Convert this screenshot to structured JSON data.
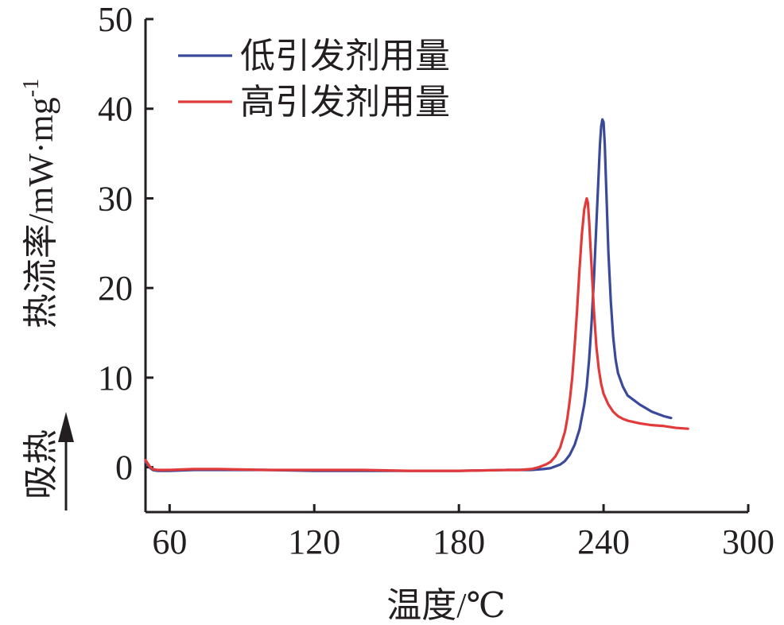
{
  "chart_data": {
    "type": "line",
    "title": "",
    "xlabel": "温度/℃",
    "ylabel": "热流率/mW·mg",
    "ylabel_superscript": "-1",
    "endo_label": "吸热",
    "endo_direction": "up",
    "xlim": [
      50,
      300
    ],
    "ylim": [
      -5,
      50
    ],
    "x_ticks": [
      60,
      120,
      180,
      240,
      300
    ],
    "y_ticks": [
      0,
      10,
      20,
      30,
      40,
      50
    ],
    "grid": false,
    "legend_position": "top-left",
    "series": [
      {
        "name": "低引发剂用量",
        "color": "#3a4a9a",
        "x": [
          50,
          51,
          52,
          53,
          55,
          58,
          60,
          70,
          80,
          100,
          120,
          140,
          160,
          180,
          200,
          210,
          215,
          218,
          220,
          222,
          224,
          226,
          228,
          230,
          232,
          233,
          234,
          235,
          236,
          237,
          238,
          238.5,
          239,
          239.5,
          240,
          240.5,
          241,
          242,
          243,
          244,
          245,
          246,
          248,
          250,
          255,
          260,
          265,
          268
        ],
        "y": [
          0.6,
          0.3,
          -0.1,
          -0.3,
          -0.4,
          -0.4,
          -0.4,
          -0.3,
          -0.3,
          -0.3,
          -0.4,
          -0.4,
          -0.4,
          -0.4,
          -0.3,
          -0.3,
          -0.2,
          -0.1,
          0.1,
          0.3,
          0.7,
          1.4,
          2.5,
          4.2,
          7.0,
          9.0,
          12.0,
          16.0,
          21.0,
          27.0,
          33.0,
          36.0,
          38.0,
          38.8,
          38.5,
          36.0,
          32.0,
          24.0,
          18.5,
          14.5,
          12.0,
          10.5,
          9.0,
          8.0,
          7.0,
          6.2,
          5.7,
          5.5
        ]
      },
      {
        "name": "高引发剂用量",
        "color": "#e23a3a",
        "x": [
          50,
          51,
          52,
          53,
          55,
          58,
          60,
          70,
          80,
          100,
          120,
          140,
          160,
          180,
          200,
          205,
          210,
          213,
          216,
          218,
          220,
          222,
          224,
          225,
          226,
          227,
          228,
          229,
          230,
          231,
          232,
          233,
          233.5,
          234,
          235,
          236,
          237,
          238,
          239,
          240,
          242,
          244,
          246,
          248,
          250,
          255,
          260,
          265,
          270,
          275
        ],
        "y": [
          0.8,
          0.4,
          0.0,
          -0.2,
          -0.3,
          -0.3,
          -0.3,
          -0.2,
          -0.2,
          -0.3,
          -0.3,
          -0.3,
          -0.4,
          -0.4,
          -0.3,
          -0.3,
          -0.2,
          0.0,
          0.3,
          0.6,
          1.2,
          2.2,
          4.0,
          5.5,
          7.5,
          10.0,
          13.5,
          17.5,
          22.0,
          26.0,
          28.8,
          30.0,
          29.5,
          27.5,
          22.5,
          17.5,
          13.5,
          11.0,
          9.3,
          8.2,
          7.0,
          6.2,
          5.7,
          5.4,
          5.2,
          4.9,
          4.7,
          4.6,
          4.4,
          4.3
        ]
      }
    ]
  }
}
